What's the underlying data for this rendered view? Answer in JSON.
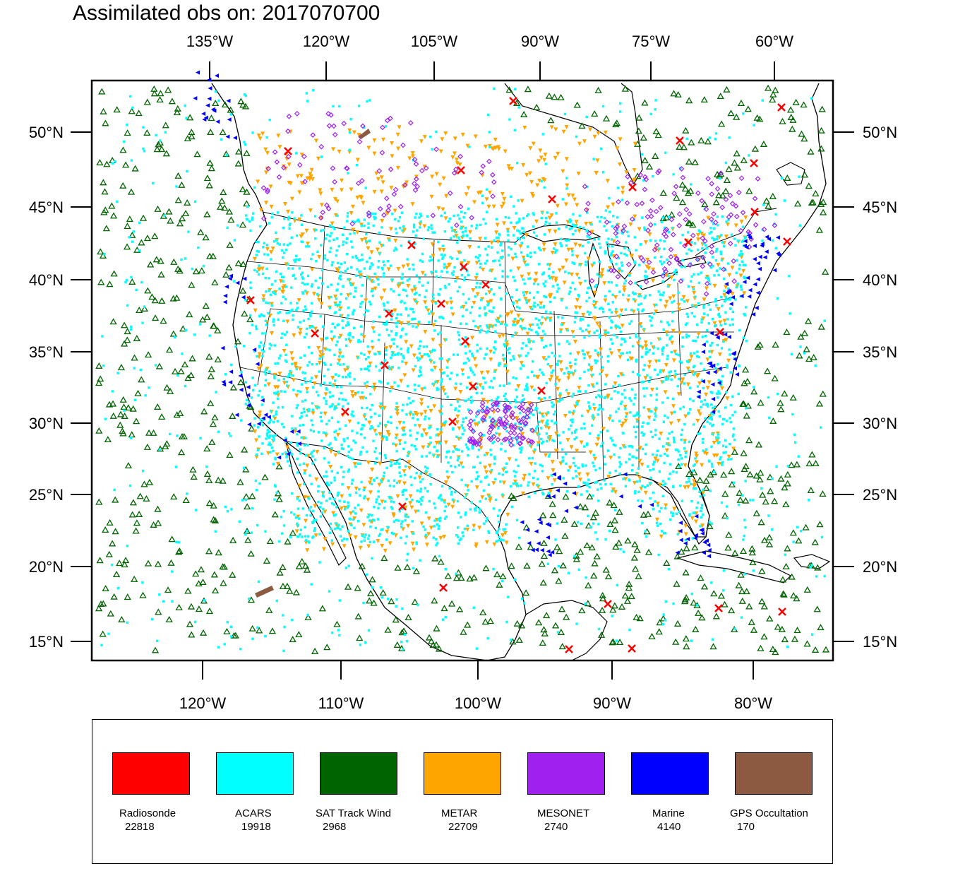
{
  "title": "Assimilated obs on: 2017070700",
  "top_axis_labels": [
    "135°W",
    "120°W",
    "105°W",
    "90°W",
    "75°W",
    "60°W"
  ],
  "bottom_axis_labels": [
    "120°W",
    "110°W",
    "100°W",
    "90°W",
    "80°W"
  ],
  "lat_labels": [
    "50°N",
    "45°N",
    "40°N",
    "35°N",
    "30°N",
    "25°N",
    "20°N",
    "15°N"
  ],
  "legend": [
    {
      "name": "Radiosonde",
      "count": "22818",
      "color": "#ff0000"
    },
    {
      "name": "ACARS",
      "count": "19918",
      "color": "#00ffff"
    },
    {
      "name": "SAT Track Wind",
      "count": "2968",
      "color": "#006400"
    },
    {
      "name": "METAR",
      "count": "22709",
      "color": "#ffa500"
    },
    {
      "name": "MESONET",
      "count": "2740",
      "color": "#a020f0"
    },
    {
      "name": "Marine",
      "count": "4140",
      "color": "#0000ff"
    },
    {
      "name": "GPS Occultation",
      "count": "170",
      "color": "#8b5a40"
    }
  ]
}
